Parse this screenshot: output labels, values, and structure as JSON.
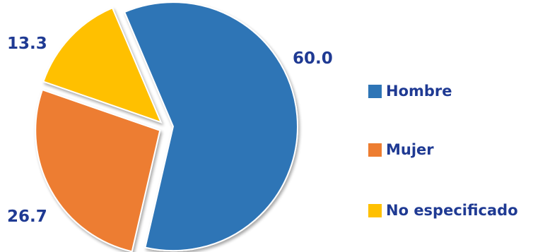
{
  "chart_data": {
    "type": "pie",
    "categories": [
      "Hombre",
      "Mujer",
      "No especificado"
    ],
    "values": [
      60.0,
      26.7,
      13.3
    ],
    "value_labels": [
      "60.0",
      "26.7",
      "13.3"
    ],
    "exploded": true,
    "legend": {
      "position": "right",
      "entries": [
        "Hombre",
        "Mujer",
        "No especificado"
      ]
    },
    "colors": [
      "#2e75b6",
      "#ed7d31",
      "#ffc000"
    ]
  }
}
